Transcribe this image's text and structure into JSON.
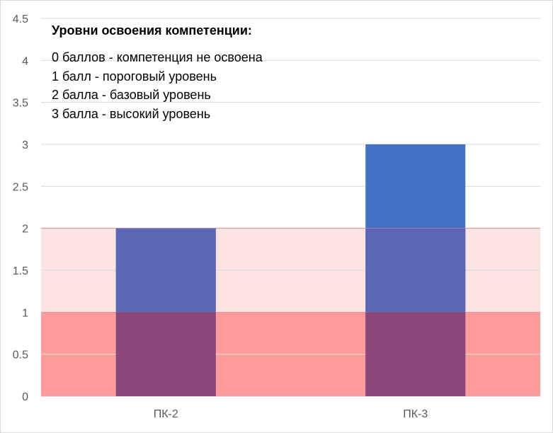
{
  "chart_data": {
    "type": "bar",
    "categories": [
      "ПК-2",
      "ПК-3"
    ],
    "values": [
      2,
      3
    ],
    "ylim": [
      0,
      4.5
    ],
    "y_ticks": [
      "0",
      "0.5",
      "1",
      "1.5",
      "2",
      "2.5",
      "3",
      "3.5",
      "4",
      "4.5"
    ],
    "grid": true,
    "bands": [
      {
        "from": 0,
        "to": 1,
        "color": "#ff9b9b"
      },
      {
        "from": 1,
        "to": 2,
        "color": "#fde4e4"
      }
    ],
    "colors": {
      "bar": "#4472c4",
      "bar_in_light_band": "#5b66b5",
      "bar_in_dark_band": "#8c4679",
      "grid": "#d9d9d9",
      "axis": "#bfbfbf",
      "band_border": "#e88d8d"
    },
    "annotation": {
      "title": "Уровни освоения компетенции:",
      "lines": [
        "0 баллов - компетенция не освоена",
        "1 балл - пороговый уровень",
        "2 балла - базовый уровень",
        "3 балла - высокий уровень"
      ]
    }
  }
}
